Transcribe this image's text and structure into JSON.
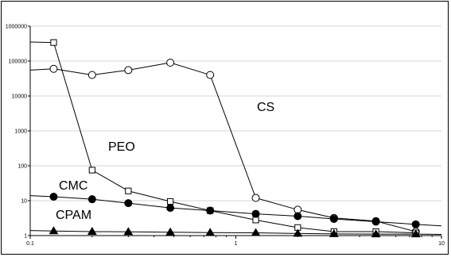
{
  "chart_data": {
    "type": "line",
    "x_scale": "log",
    "y_scale": "log",
    "xlim": [
      0.1,
      10
    ],
    "ylim": [
      1,
      1000000
    ],
    "x_tick_labels": [
      "0.1",
      "1",
      "10"
    ],
    "y_tick_labels": [
      "1",
      "10",
      "100",
      "1000",
      "10000",
      "100000",
      "1000000"
    ],
    "grid": "horizontal",
    "legend": "none",
    "series": [
      {
        "name": "CS",
        "marker": "open-circle",
        "trend": [
          [
            0.1,
            55000
          ],
          [
            0.13,
            60000
          ]
        ],
        "points": [
          [
            0.13,
            60000
          ],
          [
            0.2,
            40000
          ],
          [
            0.3,
            55000
          ],
          [
            0.48,
            90000
          ],
          [
            0.75,
            40000
          ],
          [
            1.25,
            12
          ],
          [
            2.0,
            5.5
          ],
          [
            3.0,
            3.2
          ],
          [
            4.8,
            2.6
          ],
          [
            7.5,
            1.3
          ]
        ]
      },
      {
        "name": "PEO",
        "marker": "open-square",
        "trend": [
          [
            0.1,
            350000
          ],
          [
            0.13,
            340000
          ]
        ],
        "points": [
          [
            0.13,
            340000
          ],
          [
            0.2,
            75
          ],
          [
            0.3,
            19
          ],
          [
            0.48,
            9.5
          ],
          [
            0.75,
            5.2
          ],
          [
            1.25,
            2.8
          ],
          [
            2.0,
            1.7
          ],
          [
            3.0,
            1.3
          ],
          [
            4.8,
            1.3
          ],
          [
            7.5,
            1.2
          ]
        ]
      },
      {
        "name": "CMC",
        "marker": "filled-circle",
        "trend": [
          [
            0.1,
            14
          ],
          [
            0.13,
            13
          ],
          [
            7.5,
            2.1
          ],
          [
            10,
            1.9
          ]
        ],
        "points": [
          [
            0.13,
            13
          ],
          [
            0.2,
            11
          ],
          [
            0.3,
            8.5
          ],
          [
            0.48,
            6.2
          ],
          [
            0.75,
            5.2
          ],
          [
            1.25,
            4.2
          ],
          [
            2.0,
            3.6
          ],
          [
            3.0,
            3.0
          ],
          [
            4.8,
            2.5
          ],
          [
            7.5,
            2.1
          ]
        ]
      },
      {
        "name": "CPAM",
        "marker": "filled-triangle",
        "trend": [
          [
            0.1,
            1.4
          ],
          [
            0.13,
            1.35
          ],
          [
            7.5,
            1.1
          ],
          [
            10,
            1.08
          ]
        ],
        "points": [
          [
            0.13,
            1.35
          ],
          [
            0.2,
            1.3
          ],
          [
            0.3,
            1.28
          ],
          [
            0.48,
            1.25
          ],
          [
            0.75,
            1.22
          ],
          [
            1.25,
            1.2
          ],
          [
            2.0,
            1.15
          ],
          [
            3.0,
            1.12
          ],
          [
            4.8,
            1.1
          ],
          [
            7.5,
            1.1
          ]
        ]
      }
    ]
  }
}
